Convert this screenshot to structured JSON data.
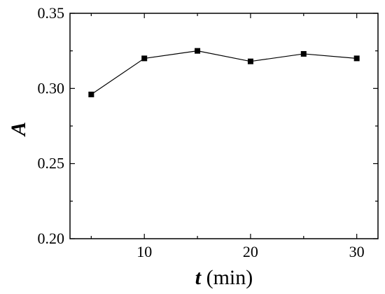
{
  "chart_data": {
    "type": "line",
    "xlabel": {
      "var": "t",
      "unit": " (min)"
    },
    "ylabel": "A",
    "xlim": [
      3,
      32
    ],
    "ylim": [
      0.2,
      0.35
    ],
    "x_major_ticks": [
      10,
      20,
      30
    ],
    "x_tick_labels": [
      "10",
      "20",
      "30"
    ],
    "x_minor_ticks": [
      5,
      15,
      25
    ],
    "y_major_ticks": [
      0.2,
      0.25,
      0.3,
      0.35
    ],
    "y_tick_labels": [
      "0.20",
      "0.25",
      "0.30",
      "0.35"
    ],
    "y_minor_ticks": [
      0.225,
      0.275,
      0.325
    ],
    "grid": false,
    "marker": "square",
    "color": "#000000",
    "series": [
      {
        "x": [
          5,
          10,
          15,
          20,
          25,
          30
        ],
        "y": [
          0.296,
          0.32,
          0.325,
          0.318,
          0.323,
          0.32
        ]
      }
    ]
  }
}
